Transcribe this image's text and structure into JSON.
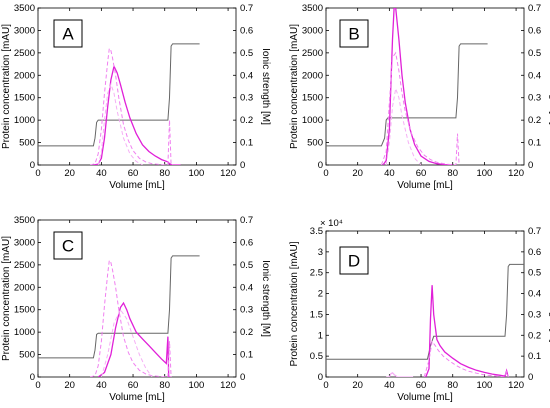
{
  "chart_data": [
    {
      "type": "line",
      "panel_label": "A",
      "xlabel": "Volume [mL]",
      "ylabel": "Protein concentration [mAU]",
      "y2label": "Ionic strength [M]",
      "xlim": [
        0,
        125
      ],
      "ylim": [
        0,
        3500
      ],
      "y2lim": [
        0,
        0.7
      ],
      "y_multiplier": "",
      "xticks": [
        "0",
        "20",
        "40",
        "60",
        "80",
        "100",
        "120"
      ],
      "yticks": [
        "0",
        "500",
        "1000",
        "1500",
        "2000",
        "2500",
        "3000",
        "3500"
      ],
      "y2ticks": [
        "0",
        "0.1",
        "0.2",
        "0.3",
        "0.4",
        "0.5",
        "0.6",
        "0.7"
      ],
      "ionic_strength": {
        "x": [
          0,
          35,
          36,
          37,
          38,
          82,
          83,
          84,
          85,
          102
        ],
        "y": [
          0.085,
          0.085,
          0.12,
          0.19,
          0.2,
          0.2,
          0.3,
          0.53,
          0.54,
          0.54
        ],
        "color": "#666666"
      },
      "series": [
        {
          "style": "solid",
          "color": "#e020d8",
          "x": [
            35,
            38,
            40,
            42,
            44,
            46,
            48,
            50,
            52,
            55,
            58,
            62,
            66,
            70,
            74,
            78,
            82,
            83,
            84,
            85,
            90
          ],
          "y": [
            0,
            20,
            150,
            600,
            1300,
            1900,
            2200,
            2050,
            1800,
            1400,
            1050,
            700,
            450,
            300,
            200,
            120,
            70,
            30,
            10,
            0,
            0
          ]
        },
        {
          "style": "dashed",
          "color": "#f080f0",
          "x": [
            33,
            36,
            38,
            40,
            42,
            44,
            45,
            46,
            47,
            49,
            51,
            54,
            57,
            60,
            64,
            68,
            72,
            78,
            82,
            83,
            84,
            85
          ],
          "y": [
            0,
            30,
            250,
            800,
            1600,
            2300,
            2600,
            2550,
            2400,
            2000,
            1500,
            900,
            550,
            320,
            150,
            70,
            30,
            10,
            0,
            1000,
            0,
            0
          ]
        },
        {
          "style": "dashed",
          "color": "#f5b0f5",
          "x": [
            38,
            40,
            42,
            44,
            46,
            48,
            50,
            54,
            58,
            62,
            66
          ],
          "y": [
            0,
            300,
            1000,
            1600,
            1800,
            1600,
            1200,
            600,
            250,
            80,
            0
          ]
        }
      ]
    },
    {
      "type": "line",
      "panel_label": "B",
      "xlabel": "Volume [mL]",
      "ylabel": "Protein concentration [mAU]",
      "y2label": "Ionic strength [M]",
      "xlim": [
        0,
        125
      ],
      "ylim": [
        0,
        3500
      ],
      "y2lim": [
        0,
        0.7
      ],
      "y_multiplier": "",
      "xticks": [
        "0",
        "20",
        "40",
        "60",
        "80",
        "100",
        "120"
      ],
      "yticks": [
        "0",
        "500",
        "1000",
        "1500",
        "2000",
        "2500",
        "3000",
        "3500"
      ],
      "y2ticks": [
        "0",
        "0.1",
        "0.2",
        "0.3",
        "0.4",
        "0.5",
        "0.6",
        "0.7"
      ],
      "ionic_strength": {
        "x": [
          0,
          35,
          37,
          38,
          39,
          82,
          83,
          84,
          85,
          102
        ],
        "y": [
          0.085,
          0.085,
          0.12,
          0.2,
          0.21,
          0.21,
          0.3,
          0.53,
          0.54,
          0.54
        ],
        "color": "#666666"
      },
      "series": [
        {
          "style": "solid",
          "color": "#e020d8",
          "x": [
            36,
            38,
            40,
            41,
            42,
            43,
            44,
            46,
            48,
            50,
            53,
            56,
            60,
            65,
            70,
            75,
            80
          ],
          "y": [
            0,
            100,
            800,
            1800,
            2800,
            3500,
            3500,
            2800,
            2000,
            1400,
            800,
            450,
            200,
            80,
            30,
            10,
            0
          ]
        },
        {
          "style": "dashed",
          "color": "#f080f0",
          "x": [
            35,
            38,
            40,
            42,
            44,
            46,
            48,
            50,
            54,
            58,
            62,
            66,
            70,
            76,
            82,
            83,
            84
          ],
          "y": [
            0,
            300,
            1400,
            2400,
            2500,
            2100,
            1600,
            1200,
            700,
            400,
            220,
            120,
            60,
            20,
            0,
            700,
            0
          ]
        },
        {
          "style": "dashed",
          "color": "#f5b0f5",
          "x": [
            38,
            40,
            42,
            44,
            46,
            48,
            52,
            56,
            60
          ],
          "y": [
            0,
            500,
            1300,
            1700,
            1500,
            1100,
            500,
            150,
            0
          ]
        }
      ]
    },
    {
      "type": "line",
      "panel_label": "C",
      "xlabel": "Volume [mL]",
      "ylabel": "Protein concentration [mAU]",
      "y2label": "Ionic strength [M]",
      "xlim": [
        0,
        125
      ],
      "ylim": [
        0,
        3500
      ],
      "y2lim": [
        0,
        0.7
      ],
      "y_multiplier": "",
      "xticks": [
        "0",
        "20",
        "40",
        "60",
        "80",
        "100",
        "120"
      ],
      "yticks": [
        "0",
        "500",
        "1000",
        "1500",
        "2000",
        "2500",
        "3000",
        "3500"
      ],
      "y2ticks": [
        "0",
        "0.1",
        "0.2",
        "0.3",
        "0.4",
        "0.5",
        "0.6",
        "0.7"
      ],
      "ionic_strength": {
        "x": [
          0,
          35,
          36,
          37,
          38,
          82,
          83,
          84,
          85,
          102
        ],
        "y": [
          0.085,
          0.085,
          0.12,
          0.19,
          0.195,
          0.195,
          0.3,
          0.53,
          0.54,
          0.54
        ],
        "color": "#666666"
      },
      "series": [
        {
          "style": "solid",
          "color": "#e020d8",
          "x": [
            38,
            42,
            46,
            49,
            52,
            54,
            56,
            58,
            62,
            66,
            70,
            74,
            78,
            81,
            82,
            82.5,
            83,
            84
          ],
          "y": [
            0,
            100,
            500,
            1100,
            1550,
            1650,
            1500,
            1300,
            1000,
            850,
            700,
            550,
            400,
            300,
            900,
            0,
            0,
            0
          ]
        },
        {
          "style": "dashed",
          "color": "#f080f0",
          "x": [
            33,
            36,
            38,
            40,
            42,
            44,
            45,
            46,
            47,
            49,
            51,
            54,
            57,
            60,
            64,
            68,
            72,
            78,
            82,
            83,
            84
          ],
          "y": [
            0,
            30,
            250,
            800,
            1600,
            2300,
            2600,
            2550,
            2400,
            2000,
            1500,
            900,
            550,
            320,
            150,
            70,
            30,
            10,
            0,
            800,
            0
          ]
        },
        {
          "style": "dashed",
          "color": "#f5b0f5",
          "x": [
            40,
            44,
            48,
            52,
            56,
            60,
            64,
            68,
            72
          ],
          "y": [
            0,
            500,
            1200,
            1500,
            1300,
            900,
            500,
            200,
            0
          ]
        }
      ]
    },
    {
      "type": "line",
      "panel_label": "D",
      "xlabel": "Volume [mL]",
      "ylabel": "Protein concentration [mAU]",
      "y2label": "Ionic strength [M]",
      "xlim": [
        0,
        125
      ],
      "ylim": [
        0,
        35000
      ],
      "y2lim": [
        0,
        0.7
      ],
      "y_multiplier": "× 10⁴",
      "xticks": [
        "0",
        "20",
        "40",
        "60",
        "80",
        "100",
        "120"
      ],
      "yticks": [
        "0",
        "0.5",
        "1",
        "1.5",
        "2",
        "2.5",
        "3",
        "3.5"
      ],
      "y2ticks": [
        "0",
        "0.1",
        "0.2",
        "0.3",
        "0.4",
        "0.5",
        "0.6",
        "0.7"
      ],
      "ionic_strength": {
        "x": [
          0,
          64,
          66,
          68,
          113,
          114,
          115,
          116,
          125
        ],
        "y": [
          0.085,
          0.085,
          0.15,
          0.195,
          0.195,
          0.3,
          0.53,
          0.54,
          0.54
        ],
        "color": "#666666"
      },
      "series": [
        {
          "style": "solid",
          "color": "#e020d8",
          "x": [
            63,
            65,
            66,
            67,
            68,
            70,
            72,
            75,
            80,
            85,
            90,
            95,
            100,
            105,
            110,
            113,
            114,
            115
          ],
          "y": [
            0,
            2000,
            14000,
            22000,
            15000,
            9000,
            7500,
            6000,
            4500,
            3200,
            2300,
            1600,
            1100,
            700,
            400,
            200,
            1500,
            0
          ]
        },
        {
          "style": "dashed",
          "color": "#f080f0",
          "x": [
            62,
            65,
            67,
            69,
            71,
            74,
            78,
            82,
            86,
            90,
            95,
            100,
            108,
            113,
            114,
            115
          ],
          "y": [
            0,
            4000,
            8500,
            7500,
            6300,
            5000,
            3800,
            2800,
            2000,
            1400,
            900,
            500,
            200,
            0,
            1300,
            0
          ]
        },
        {
          "style": "solid",
          "color": "#f5b0f5",
          "x": [
            38,
            40,
            41,
            42,
            43,
            45,
            50,
            55
          ],
          "y": [
            0,
            0,
            800,
            1000,
            600,
            0,
            0,
            0
          ]
        }
      ]
    }
  ]
}
